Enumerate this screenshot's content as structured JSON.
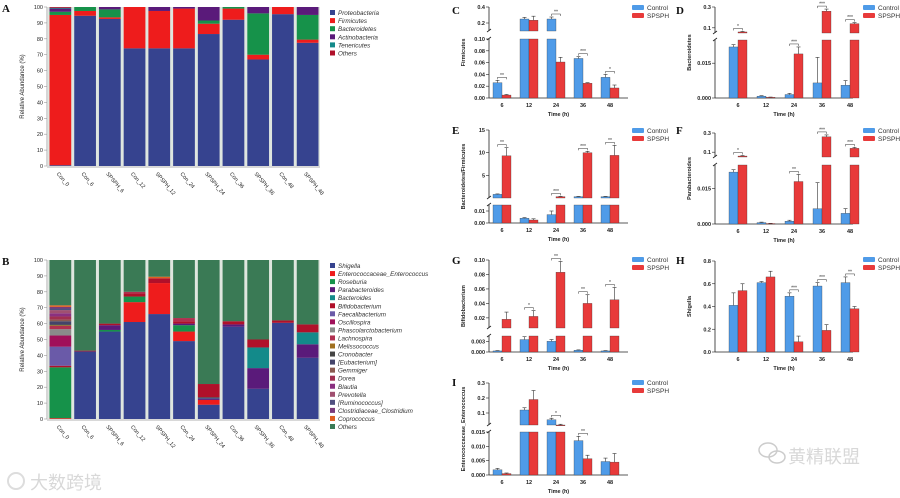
{
  "chart_data": [
    {
      "panel": "A",
      "type": "bar",
      "stacked": true,
      "ylabel": "Relative Abundance (%)",
      "ylim": [
        0,
        100
      ],
      "yticks": [
        0,
        10,
        20,
        30,
        40,
        50,
        60,
        70,
        80,
        90,
        100
      ],
      "categories": [
        "Con_0",
        "Con_6",
        "SPSPH_6",
        "Con_12",
        "SPSPH_12",
        "Con_24",
        "SPSPH_24",
        "Con_36",
        "SPSPH_36",
        "Con_48",
        "SPSPH_48"
      ],
      "legend_position": "right",
      "series": [
        {
          "name": "Proteobacteria",
          "color": "#36438f",
          "values": [
            0.5,
            94.5,
            92.5,
            74,
            74,
            74,
            83,
            92,
            67,
            95.5,
            77.5
          ]
        },
        {
          "name": "Firmicutes",
          "color": "#ee1c1c",
          "values": [
            94.5,
            3,
            1,
            26,
            23.5,
            25,
            6.5,
            7,
            3,
            4.5,
            2
          ]
        },
        {
          "name": "Bacteroidetes",
          "color": "#16924a",
          "values": [
            2,
            2.5,
            5,
            0,
            0,
            0,
            2,
            1,
            26,
            0,
            15.5
          ]
        },
        {
          "name": "Actinobacteria",
          "color": "#5a1a7a",
          "values": [
            2,
            0,
            1.5,
            0,
            2.5,
            1,
            8.5,
            0,
            4,
            0,
            5
          ]
        },
        {
          "name": "Tenericutes",
          "color": "#138a8a",
          "values": [
            0.5,
            0,
            0,
            0,
            0,
            0,
            0,
            0,
            0,
            0,
            0
          ]
        },
        {
          "name": "Others",
          "color": "#b0102a",
          "values": [
            0.5,
            0,
            0,
            0,
            0,
            0,
            0,
            0,
            0,
            0,
            0
          ]
        }
      ]
    },
    {
      "panel": "B",
      "type": "bar",
      "stacked": true,
      "ylabel": "Relative Abundance (%)",
      "ylim": [
        0,
        100
      ],
      "yticks": [
        0,
        10,
        20,
        30,
        40,
        50,
        60,
        70,
        80,
        90,
        100
      ],
      "categories": [
        "Con_0",
        "Con_6",
        "SPSPH_6",
        "Con_12",
        "SPSPH_12",
        "Con_24",
        "SPSPH_24",
        "Con_36",
        "SPSPH_36",
        "Con_48",
        "SPSPH_48"
      ],
      "legend_position": "right",
      "series": [
        {
          "name": "Shigella",
          "color": "#36438f",
          "values": [
            0,
            42.5,
            55,
            61,
            66,
            49,
            9,
            58,
            19,
            60.5,
            38.5
          ]
        },
        {
          "name": "Enterococcaceae_Enterococcus",
          "color": "#ee1c1c",
          "values": [
            0.5,
            0,
            0,
            12.5,
            19.5,
            6,
            3,
            0,
            0,
            0,
            0
          ]
        },
        {
          "name": "Roseburia",
          "color": "#16924a",
          "values": [
            32,
            0,
            1,
            3.5,
            0,
            4,
            0,
            0,
            0,
            0,
            0
          ]
        },
        {
          "name": "Parabacteroides",
          "color": "#5a1a7a",
          "values": [
            0,
            0,
            3,
            0,
            0,
            1,
            1,
            1.5,
            13,
            0,
            8.5
          ]
        },
        {
          "name": "Bacteroides",
          "color": "#138a8a",
          "values": [
            0,
            0,
            0,
            0,
            0,
            0,
            0.5,
            0,
            13,
            0,
            7.5
          ]
        },
        {
          "name": "Bifidobacterium",
          "color": "#b0102a",
          "values": [
            1,
            0.5,
            1,
            2,
            3,
            1.5,
            8.5,
            2,
            5,
            1.5,
            5
          ]
        },
        {
          "name": "Faecalibacterium",
          "color": "#6a5aa8",
          "values": [
            12,
            0,
            0,
            0,
            0,
            0,
            0,
            0,
            0,
            0,
            0
          ]
        },
        {
          "name": "Oscillospira",
          "color": "#a0105a",
          "values": [
            7,
            0,
            0,
            0,
            0,
            0,
            0,
            0,
            0,
            0,
            0
          ]
        },
        {
          "name": "Phascolarctobacterium",
          "color": "#8a8a8a",
          "values": [
            4,
            0,
            0,
            0,
            0,
            0,
            0,
            0,
            0,
            0,
            0
          ]
        },
        {
          "name": "Lachnospira",
          "color": "#b03050",
          "values": [
            2,
            0,
            0,
            1,
            0,
            2,
            0,
            0,
            0,
            0,
            0
          ]
        },
        {
          "name": "Melissococcus",
          "color": "#a07020",
          "values": [
            0.5,
            0,
            0,
            0,
            0,
            0,
            0,
            0,
            0,
            0,
            0
          ]
        },
        {
          "name": "Cronobacter",
          "color": "#444444",
          "values": [
            0.5,
            0,
            0,
            0,
            0,
            0,
            0,
            0,
            0,
            0,
            0
          ]
        },
        {
          "name": "[Eubacterium]",
          "color": "#44446a",
          "values": [
            2,
            0,
            0,
            0,
            0,
            0,
            0,
            0,
            0,
            0,
            0
          ]
        },
        {
          "name": "Gemmiger",
          "color": "#8a5a50",
          "values": [
            1,
            0,
            0,
            0,
            0,
            0,
            0,
            0,
            0,
            0,
            0
          ]
        },
        {
          "name": "Dorea",
          "color": "#a03050",
          "values": [
            2,
            0,
            0,
            0,
            0,
            0,
            0,
            0,
            0,
            0,
            0
          ]
        },
        {
          "name": "Blautia",
          "color": "#8a3080",
          "values": [
            2,
            0,
            0,
            0,
            0,
            0,
            0,
            0,
            0,
            0,
            0
          ]
        },
        {
          "name": "Prevotella",
          "color": "#a05070",
          "values": [
            2,
            0,
            0,
            0,
            0,
            0,
            0,
            0,
            0,
            0,
            0
          ]
        },
        {
          "name": "[Ruminococcus]",
          "color": "#505080",
          "values": [
            1,
            0,
            0,
            0,
            0,
            0,
            0,
            0,
            0,
            0,
            0
          ]
        },
        {
          "name": "Clostridiaceae_Clostridium",
          "color": "#7a3a7a",
          "values": [
            1,
            0,
            0,
            0,
            0,
            0,
            0,
            0,
            0,
            0,
            0
          ]
        },
        {
          "name": "Coprococcus",
          "color": "#e06020",
          "values": [
            1,
            0,
            0,
            0,
            1,
            0,
            0,
            0,
            0,
            0,
            0
          ]
        },
        {
          "name": "Others",
          "color": "#3a7a55",
          "values": [
            28.5,
            57,
            40,
            20,
            10.5,
            36.5,
            78,
            38.5,
            50,
            38,
            40.5
          ]
        }
      ]
    },
    {
      "panel": "C",
      "type": "bar",
      "ylabel": "Firmicutes",
      "xlabel": "Time (h)",
      "categories": [
        "6",
        "12",
        "24",
        "36",
        "48"
      ],
      "ylim_lower": [
        0,
        0.1
      ],
      "ylim_upper": [
        0.1,
        0.4
      ],
      "yticks_lower": [
        "0.00",
        "0.02",
        "0.04",
        "0.06",
        "0.08",
        "0.10"
      ],
      "yticks_upper": [
        "0.2",
        "0.4"
      ],
      "series": [
        {
          "name": "Control",
          "color": "#4f9be8",
          "values": [
            0.026,
            0.25,
            0.25,
            0.067,
            0.035
          ],
          "errors": [
            0.004,
            0.02,
            0.025,
            0.003,
            0.005
          ]
        },
        {
          "name": "SPSPH",
          "color": "#e83a3a",
          "values": [
            0.005,
            0.235,
            0.061,
            0.025,
            0.017
          ],
          "errors": [
            0.001,
            0.05,
            0.008,
            0.001,
            0.005
          ]
        }
      ],
      "significance": [
        "**",
        "",
        "**",
        "***",
        "*"
      ]
    },
    {
      "panel": "D",
      "type": "bar",
      "ylabel": "Bacteroidetes",
      "xlabel": "Time (h)",
      "categories": [
        "6",
        "12",
        "24",
        "36",
        "48"
      ],
      "ylim_lower": [
        0,
        0.025
      ],
      "ylim_upper": [
        0.05,
        0.3
      ],
      "yticks_lower": [
        "0.000",
        "0.015"
      ],
      "yticks_upper": [
        "0.1",
        "0.3"
      ],
      "series": [
        {
          "name": "Control",
          "color": "#4f9be8",
          "values": [
            0.022,
            0.0008,
            0.0015,
            0.0065,
            0.0055
          ],
          "errors": [
            0.001,
            0.0002,
            0.0005,
            0.011,
            0.002
          ]
        },
        {
          "name": "SPSPH",
          "color": "#e83a3a",
          "values": [
            0.06,
            0.0003,
            0.019,
            0.26,
            0.14
          ],
          "errors": [
            0.005,
            0.0001,
            0.003,
            0.02,
            0.01
          ]
        }
      ],
      "significance": [
        "*",
        "",
        "***",
        "***",
        "***"
      ]
    },
    {
      "panel": "E",
      "type": "bar",
      "ylabel": "Bacteroidetes/Firmicutes",
      "xlabel": "Time (h)",
      "categories": [
        "6",
        "12",
        "24",
        "36",
        "48"
      ],
      "ylim_lower": [
        0,
        0.015
      ],
      "ylim_upper": [
        0,
        15
      ],
      "yticks_lower": [
        "0.00",
        "0.01"
      ],
      "yticks_upper": [
        "5",
        "10",
        "15"
      ],
      "series": [
        {
          "name": "Control",
          "color": "#4f9be8",
          "values": [
            0.8,
            0.004,
            0.007,
            0.3,
            0.3
          ],
          "errors": [
            0.1,
            0.0005,
            0.003,
            0.05,
            0.05
          ]
        },
        {
          "name": "SPSPH",
          "color": "#e83a3a",
          "values": [
            9.3,
            0.0025,
            0.3,
            10,
            9.4
          ],
          "errors": [
            1.8,
            0.001,
            0.05,
            0.3,
            2.2
          ]
        }
      ],
      "significance": [
        "**",
        "",
        "***",
        "***",
        "**"
      ]
    },
    {
      "panel": "F",
      "type": "bar",
      "ylabel": "Parabacteroides",
      "xlabel": "Time (h)",
      "categories": [
        "6",
        "12",
        "24",
        "36",
        "48"
      ],
      "ylim_lower": [
        0,
        0.025
      ],
      "ylim_upper": [
        0.05,
        0.3
      ],
      "yticks_lower": [
        "0.000",
        "0.015"
      ],
      "yticks_upper": [
        "0.1",
        "0.3"
      ],
      "series": [
        {
          "name": "Control",
          "color": "#4f9be8",
          "values": [
            0.022,
            0.0006,
            0.0012,
            0.0065,
            0.0045
          ],
          "errors": [
            0.001,
            0.0002,
            0.0004,
            0.011,
            0.002
          ]
        },
        {
          "name": "SPSPH",
          "color": "#e83a3a",
          "values": [
            0.06,
            0.0002,
            0.018,
            0.26,
            0.14
          ],
          "errors": [
            0.005,
            0.0001,
            0.003,
            0.02,
            0.01
          ]
        }
      ],
      "significance": [
        "*",
        "",
        "**",
        "***",
        "***"
      ]
    },
    {
      "panel": "G",
      "type": "bar",
      "ylabel": "Bifidobacterium",
      "xlabel": "Time (h)",
      "categories": [
        "6",
        "12",
        "24",
        "36",
        "48"
      ],
      "ylim_lower": [
        0,
        0.0045
      ],
      "ylim_upper": [
        0.006,
        0.1
      ],
      "yticks_lower": [
        "0.000",
        "0.003"
      ],
      "yticks_upper": [
        "0.02",
        "0.04",
        "0.06",
        "0.08",
        "0.10"
      ],
      "series": [
        {
          "name": "Control",
          "color": "#4f9be8",
          "values": [
            0.0003,
            0.0035,
            0.003,
            0.0005,
            0.0003
          ],
          "errors": [
            0.0001,
            0.0008,
            0.0005,
            0.0001,
            0.0001
          ]
        },
        {
          "name": "SPSPH",
          "color": "#e83a3a",
          "values": [
            0.018,
            0.022,
            0.083,
            0.04,
            0.045
          ],
          "errors": [
            0.01,
            0.008,
            0.015,
            0.012,
            0.017
          ]
        }
      ],
      "significance": [
        "",
        "*",
        "**",
        "**",
        "*"
      ]
    },
    {
      "panel": "H",
      "type": "bar",
      "ylabel": "Shigella",
      "xlabel": "Time (h)",
      "categories": [
        "6",
        "12",
        "24",
        "36",
        "48"
      ],
      "ylim_lower": [
        0,
        0.8
      ],
      "yticks_lower": [
        "0.0",
        "0.2",
        "0.4",
        "0.6",
        "0.8"
      ],
      "series": [
        {
          "name": "Control",
          "color": "#4f9be8",
          "values": [
            0.41,
            0.61,
            0.49,
            0.58,
            0.61
          ],
          "errors": [
            0.11,
            0.01,
            0.03,
            0.03,
            0.05
          ]
        },
        {
          "name": "SPSPH",
          "color": "#e83a3a",
          "values": [
            0.54,
            0.66,
            0.09,
            0.19,
            0.38
          ],
          "errors": [
            0.06,
            0.05,
            0.05,
            0.05,
            0.02
          ]
        }
      ],
      "significance": [
        "",
        "",
        "***",
        "***",
        "**"
      ]
    },
    {
      "panel": "I",
      "type": "bar",
      "ylabel": "Enterococcaceae_Enterococcus",
      "xlabel": "Time (h)",
      "categories": [
        "6",
        "12",
        "24",
        "36",
        "48"
      ],
      "ylim_lower": [
        0,
        0.015
      ],
      "ylim_upper": [
        0.02,
        0.3
      ],
      "yticks_lower": [
        "0.000",
        "0.005",
        "0.010",
        "0.015"
      ],
      "yticks_upper": [
        "0.1",
        "0.2",
        "0.3"
      ],
      "series": [
        {
          "name": "Control",
          "color": "#4f9be8",
          "values": [
            0.0018,
            0.12,
            0.055,
            0.012,
            0.0047
          ],
          "errors": [
            0.0005,
            0.015,
            0.01,
            0.0015,
            0.0012
          ]
        },
        {
          "name": "SPSPH",
          "color": "#e83a3a",
          "values": [
            0.0005,
            0.19,
            0.02,
            0.0057,
            0.0045
          ],
          "errors": [
            0.0002,
            0.06,
            0.005,
            0.0012,
            0.003
          ]
        }
      ],
      "significance": [
        "",
        "",
        "*",
        "**",
        ""
      ]
    }
  ],
  "watermarks": {
    "left": "大数跨境",
    "right": "黄精联盟"
  }
}
